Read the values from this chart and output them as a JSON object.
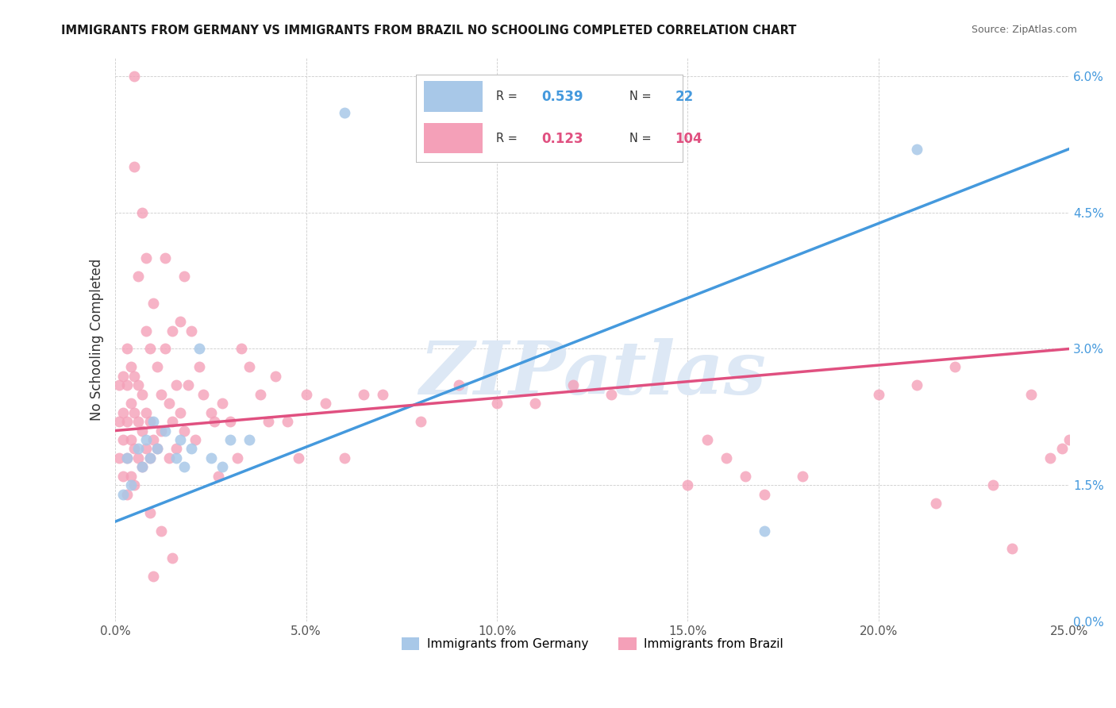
{
  "title": "IMMIGRANTS FROM GERMANY VS IMMIGRANTS FROM BRAZIL NO SCHOOLING COMPLETED CORRELATION CHART",
  "source": "Source: ZipAtlas.com",
  "ylabel": "No Schooling Completed",
  "x_ticks": [
    0.0,
    0.05,
    0.1,
    0.15,
    0.2,
    0.25
  ],
  "x_tick_labels": [
    "0.0%",
    "5.0%",
    "10.0%",
    "15.0%",
    "20.0%",
    "25.0%"
  ],
  "y_ticks": [
    0.0,
    0.015,
    0.03,
    0.045,
    0.06
  ],
  "y_tick_labels": [
    "0.0%",
    "1.5%",
    "3.0%",
    "4.5%",
    "6.0%"
  ],
  "xlim": [
    0.0,
    0.25
  ],
  "ylim": [
    0.0,
    0.062
  ],
  "germany_R": "0.539",
  "germany_N": "22",
  "brazil_R": "0.123",
  "brazil_N": "104",
  "germany_color": "#a8c8e8",
  "brazil_color": "#f4a0b8",
  "germany_line_color": "#4499dd",
  "brazil_line_color": "#e05080",
  "watermark": "ZIPatlas",
  "watermark_color": "#dde8f5",
  "legend_label_germany": "Immigrants from Germany",
  "legend_label_brazil": "Immigrants from Brazil",
  "germany_line_start_y": 0.011,
  "germany_line_end_y": 0.052,
  "brazil_line_start_y": 0.021,
  "brazil_line_end_y": 0.03,
  "germany_points_x": [
    0.002,
    0.003,
    0.004,
    0.006,
    0.007,
    0.008,
    0.009,
    0.01,
    0.011,
    0.013,
    0.016,
    0.017,
    0.018,
    0.02,
    0.022,
    0.025,
    0.028,
    0.03,
    0.035,
    0.06,
    0.17,
    0.21
  ],
  "germany_points_y": [
    0.014,
    0.018,
    0.015,
    0.019,
    0.017,
    0.02,
    0.018,
    0.022,
    0.019,
    0.021,
    0.018,
    0.02,
    0.017,
    0.019,
    0.03,
    0.018,
    0.017,
    0.02,
    0.02,
    0.056,
    0.01,
    0.052
  ],
  "brazil_points_x": [
    0.001,
    0.001,
    0.001,
    0.002,
    0.002,
    0.002,
    0.002,
    0.003,
    0.003,
    0.003,
    0.003,
    0.003,
    0.004,
    0.004,
    0.004,
    0.004,
    0.005,
    0.005,
    0.005,
    0.005,
    0.005,
    0.006,
    0.006,
    0.006,
    0.006,
    0.007,
    0.007,
    0.007,
    0.008,
    0.008,
    0.008,
    0.008,
    0.009,
    0.009,
    0.009,
    0.01,
    0.01,
    0.011,
    0.011,
    0.012,
    0.012,
    0.013,
    0.013,
    0.014,
    0.014,
    0.015,
    0.015,
    0.016,
    0.016,
    0.017,
    0.017,
    0.018,
    0.018,
    0.019,
    0.02,
    0.021,
    0.022,
    0.023,
    0.025,
    0.026,
    0.027,
    0.028,
    0.03,
    0.032,
    0.033,
    0.035,
    0.038,
    0.04,
    0.042,
    0.045,
    0.048,
    0.05,
    0.055,
    0.06,
    0.065,
    0.07,
    0.08,
    0.09,
    0.1,
    0.11,
    0.12,
    0.13,
    0.15,
    0.155,
    0.16,
    0.165,
    0.17,
    0.18,
    0.2,
    0.21,
    0.215,
    0.22,
    0.23,
    0.235,
    0.24,
    0.245,
    0.248,
    0.25,
    0.01,
    0.012,
    0.015,
    0.005,
    0.007,
    0.009
  ],
  "brazil_points_y": [
    0.018,
    0.022,
    0.026,
    0.016,
    0.02,
    0.023,
    0.027,
    0.014,
    0.018,
    0.022,
    0.026,
    0.03,
    0.016,
    0.02,
    0.024,
    0.028,
    0.015,
    0.019,
    0.023,
    0.027,
    0.05,
    0.018,
    0.022,
    0.026,
    0.038,
    0.017,
    0.021,
    0.025,
    0.019,
    0.023,
    0.032,
    0.04,
    0.018,
    0.022,
    0.03,
    0.02,
    0.035,
    0.019,
    0.028,
    0.021,
    0.025,
    0.03,
    0.04,
    0.018,
    0.024,
    0.022,
    0.032,
    0.019,
    0.026,
    0.023,
    0.033,
    0.021,
    0.038,
    0.026,
    0.032,
    0.02,
    0.028,
    0.025,
    0.023,
    0.022,
    0.016,
    0.024,
    0.022,
    0.018,
    0.03,
    0.028,
    0.025,
    0.022,
    0.027,
    0.022,
    0.018,
    0.025,
    0.024,
    0.018,
    0.025,
    0.025,
    0.022,
    0.026,
    0.024,
    0.024,
    0.026,
    0.025,
    0.015,
    0.02,
    0.018,
    0.016,
    0.014,
    0.016,
    0.025,
    0.026,
    0.013,
    0.028,
    0.015,
    0.008,
    0.025,
    0.018,
    0.019,
    0.02,
    0.005,
    0.01,
    0.007,
    0.06,
    0.045,
    0.012
  ]
}
